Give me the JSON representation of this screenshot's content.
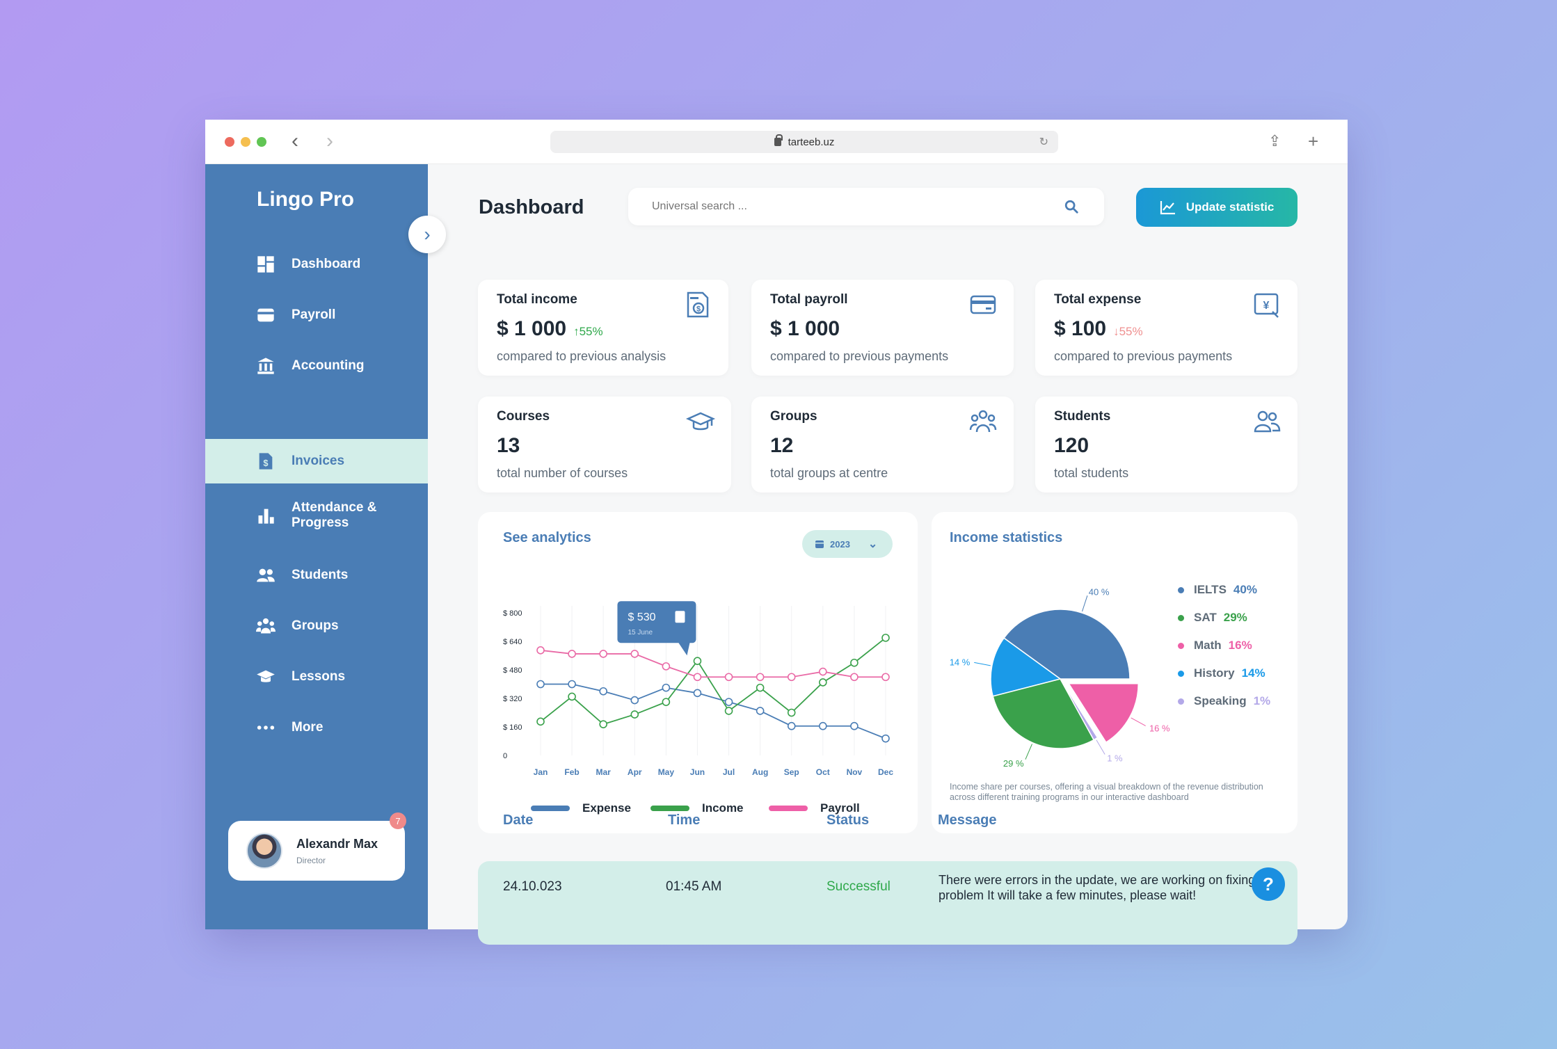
{
  "browser": {
    "url": "tarteeb.uz"
  },
  "sidebar": {
    "brand": "Lingo Pro",
    "items": [
      {
        "label": "Dashboard",
        "icon": "dashboard-icon"
      },
      {
        "label": "Payroll",
        "icon": "card-icon"
      },
      {
        "label": "Accounting",
        "icon": "bank-icon"
      },
      {
        "label": "Invoices",
        "icon": "invoice-icon",
        "active": true
      },
      {
        "label": "Attendance &",
        "label2": "Progress",
        "icon": "bar-chart-icon"
      },
      {
        "label": "Students",
        "icon": "students-icon"
      },
      {
        "label": "Groups",
        "icon": "groups-icon"
      },
      {
        "label": "Lessons",
        "icon": "graduation-cap-icon"
      },
      {
        "label": "More",
        "icon": "more-icon"
      }
    ],
    "user": {
      "name": "Alexandr Max",
      "role": "Director",
      "notifications": "7"
    }
  },
  "header": {
    "title": "Dashboard",
    "search_placeholder": "Universal search ...",
    "update_label": "Update statistic"
  },
  "cards": [
    {
      "title": "Total income",
      "value": "$ 1 000",
      "trend": "55%",
      "trend_dir": "up",
      "sub": "compared to previous analysis"
    },
    {
      "title": "Total payroll",
      "value": "$ 1 000",
      "sub": "compared to previous payments"
    },
    {
      "title": "Total expense",
      "value": "$ 100",
      "trend": "55%",
      "trend_dir": "down",
      "sub": "compared to previous payments"
    },
    {
      "title": "Courses",
      "value": "13",
      "sub": "total number of courses"
    },
    {
      "title": "Groups",
      "value": "12",
      "sub": "total groups at centre"
    },
    {
      "title": "Students",
      "value": "120",
      "sub": "total students"
    }
  ],
  "analytics": {
    "title": "See analytics",
    "year": "2023",
    "tooltip": {
      "value": "$ 530",
      "date": "15 June"
    }
  },
  "income_stats": {
    "title": "Income statistics",
    "caption": "Income share per courses, offering a visual breakdown of the revenue distribution across different training programs in our interactive dashboard"
  },
  "chart_data": [
    {
      "type": "line",
      "x": [
        "Jan",
        "Feb",
        "Mar",
        "Apr",
        "May",
        "Jun",
        "Jul",
        "Aug",
        "Sep",
        "Oct",
        "Nov",
        "Dec"
      ],
      "yticks": [
        "0",
        "$ 160",
        "$ 320",
        "$ 480",
        "$ 640",
        "$ 800"
      ],
      "ylim": [
        0,
        800
      ],
      "series": [
        {
          "name": "Expense",
          "color": "#4a7db5",
          "values": [
            400,
            400,
            360,
            310,
            380,
            350,
            300,
            250,
            165,
            165,
            165,
            95
          ]
        },
        {
          "name": "Income",
          "color": "#3aa14b",
          "values": [
            190,
            330,
            175,
            230,
            300,
            530,
            250,
            380,
            240,
            410,
            520,
            660
          ]
        },
        {
          "name": "Payroll",
          "color": "#e96aa6",
          "values": [
            590,
            570,
            570,
            570,
            500,
            440,
            440,
            440,
            440,
            470,
            440,
            440
          ]
        }
      ]
    },
    {
      "type": "pie",
      "labels": [
        "IELTS",
        "SAT",
        "Math",
        "History",
        "Speaking"
      ],
      "values": [
        40,
        29,
        16,
        14,
        1
      ],
      "value_labels": [
        "40%",
        "29%",
        "16%",
        "14%",
        "1%"
      ],
      "slice_labels": [
        "40 %",
        "29 %",
        "16 %",
        "14 %",
        "1 %"
      ],
      "colors": [
        "#4a7db5",
        "#3aa14b",
        "#ee5fa7",
        "#1a9ae8",
        "#b3a8e8"
      ]
    }
  ],
  "table": {
    "headers": [
      "Date",
      "Time",
      "Status",
      "Message"
    ],
    "rows": [
      {
        "date": "24.10.023",
        "time": "01:45 AM",
        "status": "Successful",
        "message": "There were errors in the update, we are working on fixing the problem It will take a few minutes, please wait!"
      }
    ]
  },
  "colors": {
    "primary": "#4a7db5",
    "accent": "#d3eee9",
    "success": "#2ea84a",
    "danger": "#ef9090"
  }
}
